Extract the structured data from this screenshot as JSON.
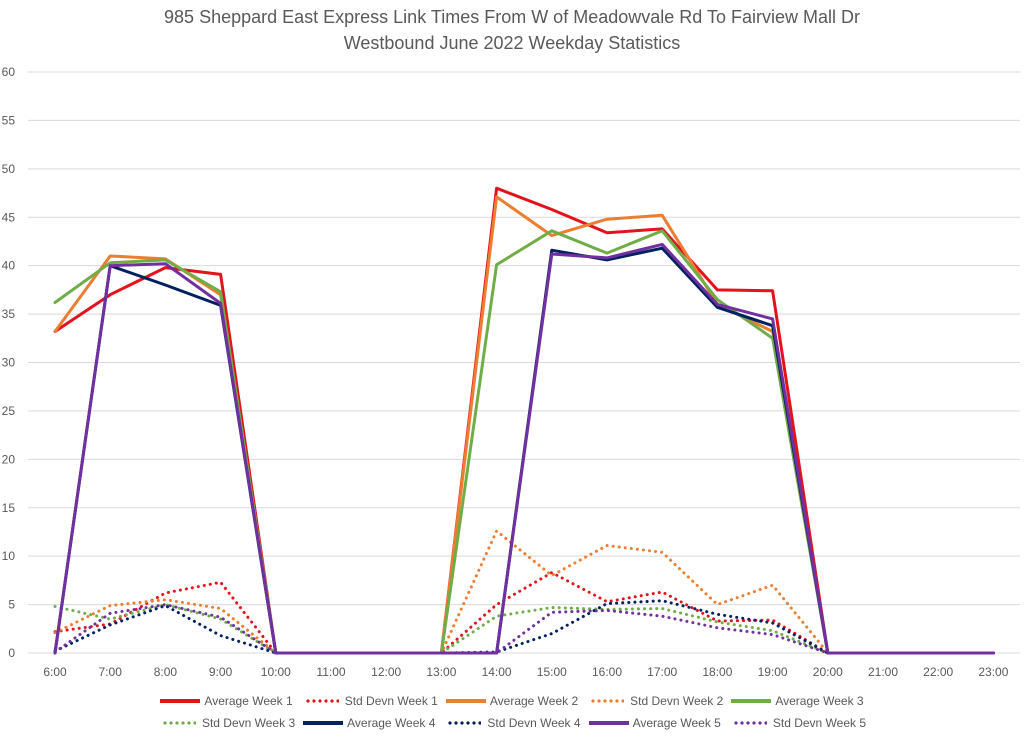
{
  "chart_data": {
    "type": "line",
    "title": "985 Sheppard East Express Link Times From W of Meadowvale Rd To Fairview Mall Dr",
    "subtitle": "Westbound June 2022 Weekday Statistics",
    "xlabel": "",
    "ylabel": "",
    "ylim": [
      0,
      60
    ],
    "yticks": [
      0,
      5,
      10,
      15,
      20,
      25,
      30,
      35,
      40,
      45,
      50,
      55,
      60
    ],
    "grid": true,
    "legend_position": "bottom",
    "categories": [
      "6:00",
      "7:00",
      "8:00",
      "9:00",
      "10:00",
      "11:00",
      "12:00",
      "13:00",
      "14:00",
      "15:00",
      "16:00",
      "17:00",
      "18:00",
      "19:00",
      "20:00",
      "21:00",
      "22:00",
      "23:00"
    ],
    "series": [
      {
        "name": "Average Week 1",
        "color": "#e3121b",
        "style": "solid",
        "values": [
          33.2,
          37.0,
          39.8,
          39.1,
          0,
          0,
          0,
          0,
          48.0,
          45.8,
          43.4,
          43.8,
          37.5,
          37.4,
          0,
          0,
          0,
          0
        ]
      },
      {
        "name": "Std Devn Week 1",
        "color": "#e3121b",
        "style": "dotted",
        "values": [
          2.2,
          3.0,
          6.2,
          7.3,
          0,
          0,
          0,
          0,
          5.0,
          8.3,
          5.3,
          6.3,
          3.3,
          3.4,
          0,
          0,
          0,
          0
        ]
      },
      {
        "name": "Average Week 2",
        "color": "#ed7d31",
        "style": "solid",
        "values": [
          33.2,
          41.0,
          40.7,
          37.0,
          0,
          0,
          0,
          0,
          47.1,
          43.1,
          44.8,
          45.2,
          36.0,
          33.2,
          0,
          0,
          0,
          0
        ]
      },
      {
        "name": "Std Devn Week 2",
        "color": "#ed7d31",
        "style": "dotted",
        "values": [
          2.1,
          4.9,
          5.5,
          4.6,
          0,
          0,
          0,
          0,
          12.6,
          8.0,
          11.1,
          10.4,
          5.0,
          7.0,
          0,
          0,
          0,
          0
        ]
      },
      {
        "name": "Average Week 3",
        "color": "#70ad47",
        "style": "solid",
        "values": [
          36.2,
          40.3,
          40.6,
          37.3,
          0,
          0,
          0,
          0,
          40.1,
          43.6,
          41.3,
          43.6,
          36.5,
          32.5,
          0,
          0,
          0,
          0
        ]
      },
      {
        "name": "Std Devn Week 3",
        "color": "#70ad47",
        "style": "dotted",
        "values": [
          4.8,
          3.5,
          5.0,
          3.5,
          0,
          0,
          0,
          0,
          3.8,
          4.7,
          4.5,
          4.6,
          3.2,
          2.3,
          0,
          0,
          0,
          0
        ]
      },
      {
        "name": "Average Week 4",
        "color": "#002060",
        "style": "solid",
        "values": [
          0,
          40.0,
          38.0,
          35.9,
          0,
          0,
          0,
          0,
          0,
          41.6,
          40.6,
          41.8,
          35.7,
          33.8,
          0,
          0,
          0,
          0
        ]
      },
      {
        "name": "Std Devn Week 4",
        "color": "#002060",
        "style": "dotted",
        "values": [
          0.2,
          2.9,
          4.9,
          1.8,
          0,
          0,
          0,
          0,
          0.1,
          2.0,
          5.1,
          5.4,
          4.0,
          3.1,
          0,
          0,
          0,
          0
        ]
      },
      {
        "name": "Average Week 5",
        "color": "#7030a0",
        "style": "solid",
        "values": [
          0,
          40.0,
          40.2,
          36.1,
          0,
          0,
          0,
          0,
          0,
          41.2,
          40.8,
          42.2,
          36.0,
          34.5,
          0,
          0,
          0,
          0
        ]
      },
      {
        "name": "Std Devn Week 5",
        "color": "#7030a0",
        "style": "dotted",
        "values": [
          0.1,
          4.1,
          5.0,
          3.7,
          0,
          0,
          0,
          0,
          0,
          4.2,
          4.4,
          3.8,
          2.6,
          1.9,
          0,
          0,
          0,
          0
        ]
      }
    ]
  }
}
